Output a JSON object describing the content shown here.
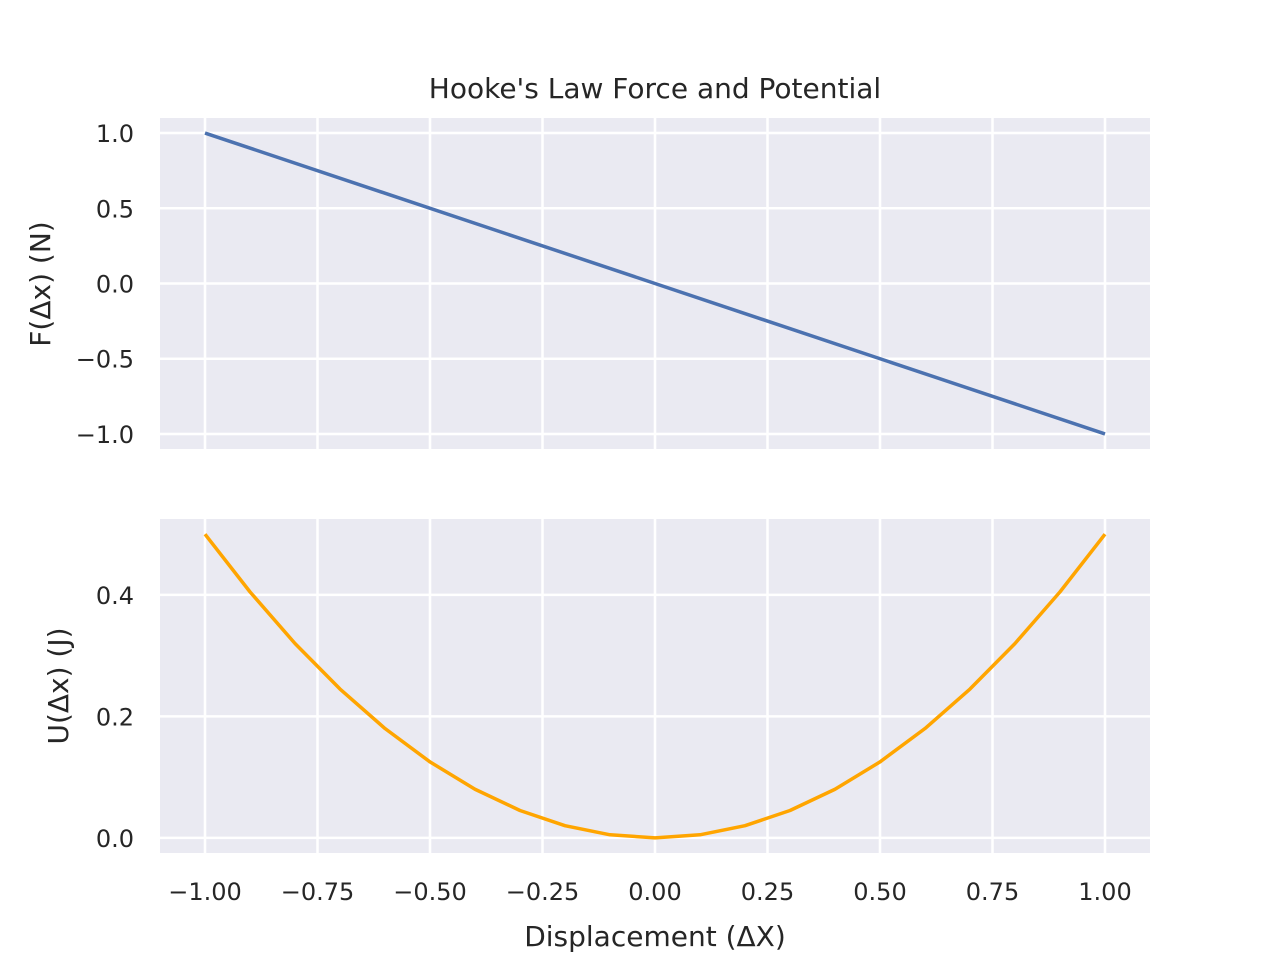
{
  "chart_data": [
    {
      "type": "line",
      "title": "Hooke's Law Force and Potential",
      "ylabel": "F(Δx) (N)",
      "xlabel": "",
      "xlim": [
        -1.1,
        1.1
      ],
      "ylim": [
        -1.1,
        1.1
      ],
      "x_ticks": [
        -1.0,
        -0.75,
        -0.5,
        -0.25,
        0.0,
        0.25,
        0.5,
        0.75,
        1.0
      ],
      "y_ticks": [
        1.0,
        0.5,
        0.0,
        -0.5,
        -1.0
      ],
      "y_tick_labels": [
        "1.0",
        "0.5",
        "0.0",
        "−0.5",
        "−1.0"
      ],
      "grid": true,
      "series": [
        {
          "color": "#4c72b0",
          "x": [
            -1.0,
            1.0
          ],
          "y": [
            1.0,
            -1.0
          ]
        }
      ]
    },
    {
      "type": "line",
      "xlabel": "Displacement (ΔX)",
      "ylabel": "U(Δx) (J)",
      "xlim": [
        -1.1,
        1.1
      ],
      "ylim": [
        -0.025,
        0.525
      ],
      "x_ticks": [
        -1.0,
        -0.75,
        -0.5,
        -0.25,
        0.0,
        0.25,
        0.5,
        0.75,
        1.0
      ],
      "x_tick_labels": [
        "−1.00",
        "−0.75",
        "−0.50",
        "−0.25",
        "0.00",
        "0.25",
        "0.50",
        "0.75",
        "1.00"
      ],
      "y_ticks": [
        0.4,
        0.2,
        0.0
      ],
      "y_tick_labels": [
        "0.4",
        "0.2",
        "0.0"
      ],
      "grid": true,
      "series": [
        {
          "color": "#ffa500",
          "x": [
            -1.0,
            -0.9,
            -0.8,
            -0.7,
            -0.6,
            -0.5,
            -0.4,
            -0.3,
            -0.2,
            -0.1,
            0.0,
            0.1,
            0.2,
            0.3,
            0.4,
            0.5,
            0.6,
            0.7,
            0.8,
            0.9,
            1.0
          ],
          "y": [
            0.5,
            0.405,
            0.32,
            0.245,
            0.18,
            0.125,
            0.08,
            0.045,
            0.02,
            0.005,
            0.0,
            0.005,
            0.02,
            0.045,
            0.08,
            0.125,
            0.18,
            0.245,
            0.32,
            0.405,
            0.5
          ]
        }
      ]
    }
  ]
}
